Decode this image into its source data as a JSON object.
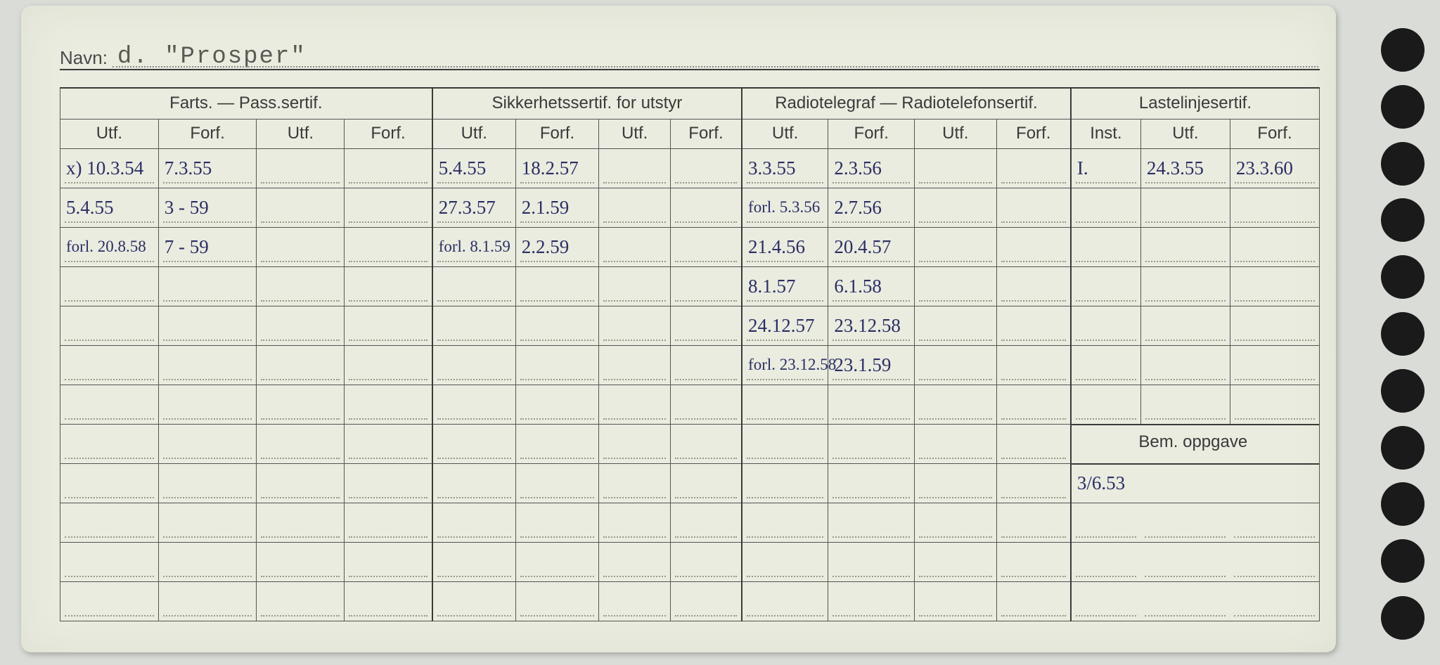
{
  "navn_label": "Navn:",
  "navn_value": "d.  \"Prosper\"",
  "groups": {
    "farts": "Farts. — Pass.sertif.",
    "sikkerhet": "Sikkerhetssertif. for utstyr",
    "radio": "Radiotelegraf — Radiotelefonsertif.",
    "laste": "Lastelinjesertif."
  },
  "sub": {
    "utf": "Utf.",
    "forf": "Forf.",
    "inst": "Inst."
  },
  "bem_label": "Bem. oppgave",
  "bem_value": "3/6.53",
  "rows": [
    {
      "f_utf": "x) 10.3.54",
      "f_forf": "7.3.55",
      "s_utf": "5.4.55",
      "s_forf": "18.2.57",
      "r_utf": "3.3.55",
      "r_forf": "2.3.56",
      "l_inst": "I.",
      "l_utf": "24.3.55",
      "l_forf": "23.3.60"
    },
    {
      "f_utf": "5.4.55",
      "f_forf": "3 - 59",
      "s_utf": "27.3.57",
      "s_forf": "2.1.59",
      "r_utf": "forl. 5.3.56",
      "r_forf": "2.7.56"
    },
    {
      "f_utf": "forl. 20.8.58",
      "f_forf": "7 - 59",
      "s_utf": "forl. 8.1.59",
      "s_forf": "2.2.59",
      "r_utf": "21.4.56",
      "r_forf": "20.4.57"
    },
    {
      "r_utf": "8.1.57",
      "r_forf": "6.1.58"
    },
    {
      "r_utf": "24.12.57",
      "r_forf": "23.12.58"
    },
    {
      "r_utf": "forl. 23.12.58",
      "r_forf": "23.1.59"
    },
    {},
    {},
    {},
    {},
    {},
    {}
  ],
  "colors": {
    "card_bg": "#e9ecdf",
    "page_bg": "#d9dcd7",
    "line": "#3a3a3a",
    "ink_blue": "#2b2e64",
    "ink_grey": "#6a6a6a",
    "dot": "#9a9a8a",
    "hole": "#1a1a1a"
  }
}
